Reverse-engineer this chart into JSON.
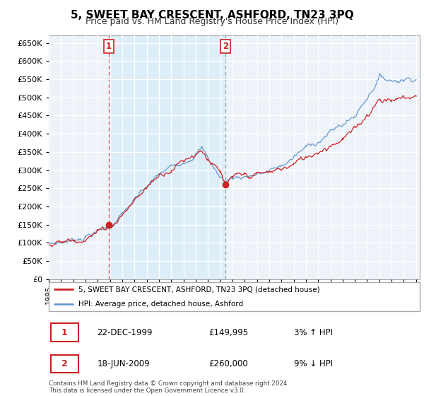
{
  "title": "5, SWEET BAY CRESCENT, ASHFORD, TN23 3PQ",
  "subtitle": "Price paid vs. HM Land Registry's House Price Index (HPI)",
  "ylim": [
    0,
    670000
  ],
  "yticks": [
    0,
    50000,
    100000,
    150000,
    200000,
    250000,
    300000,
    350000,
    400000,
    450000,
    500000,
    550000,
    600000,
    650000
  ],
  "sale1_t": 1999.917,
  "sale1_price": 149995,
  "sale1_hpi_pct": "3% ↑ HPI",
  "sale1_date_label": "22-DEC-1999",
  "sale2_t": 2009.417,
  "sale2_price": 260000,
  "sale2_hpi_pct": "9% ↓ HPI",
  "sale2_date_label": "18-JUN-2009",
  "legend_property": "5, SWEET BAY CRESCENT, ASHFORD, TN23 3PQ (detached house)",
  "legend_hpi": "HPI: Average price, detached house, Ashford",
  "footer": "Contains HM Land Registry data © Crown copyright and database right 2024.\nThis data is licensed under the Open Government Licence v3.0.",
  "property_color": "#cc2222",
  "hpi_color": "#6699cc",
  "shade_color": "#ddeeff",
  "background_color": "#ffffff",
  "grid_color": "#cccccc",
  "title_fontsize": 11,
  "subtitle_fontsize": 9,
  "axis_fontsize": 8
}
